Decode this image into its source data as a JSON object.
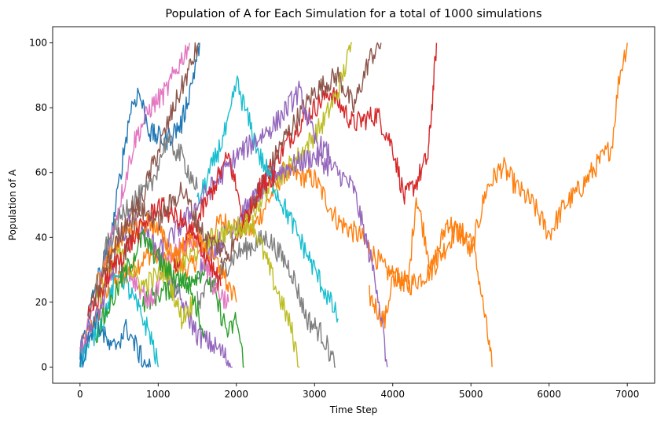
{
  "chart_data": {
    "type": "line",
    "title": "Population of A for Each Simulation for a total of 1000 simulations",
    "xlabel": "Time Step",
    "ylabel": "Population of A",
    "xlim": [
      -350,
      7350
    ],
    "ylim": [
      -5,
      105
    ],
    "xticks": [
      0,
      1000,
      2000,
      3000,
      4000,
      5000,
      6000,
      7000
    ],
    "yticks": [
      0,
      20,
      40,
      60,
      80,
      100
    ],
    "grid": false,
    "legend": "none",
    "palette": [
      "#1f77b4",
      "#ff7f0e",
      "#2ca02c",
      "#d62728",
      "#9467bd",
      "#8c564b",
      "#e377c2",
      "#7f7f7f",
      "#bcbd22",
      "#17becf"
    ],
    "series": [
      {
        "color": "#ff7f0e",
        "points": [
          [
            0,
            5
          ],
          [
            400,
            25
          ],
          [
            900,
            35
          ],
          [
            1400,
            30
          ],
          [
            1800,
            45
          ],
          [
            2200,
            42
          ],
          [
            2600,
            60
          ],
          [
            3000,
            58
          ],
          [
            3300,
            45
          ],
          [
            3600,
            40
          ],
          [
            3900,
            30
          ],
          [
            4200,
            25
          ],
          [
            4500,
            30
          ],
          [
            4800,
            42
          ],
          [
            5000,
            40
          ],
          [
            5100,
            28
          ],
          [
            5200,
            12
          ],
          [
            5270,
            0
          ]
        ]
      },
      {
        "color": "#ff7f0e",
        "points": [
          [
            3700,
            22
          ],
          [
            3900,
            14
          ],
          [
            4000,
            28
          ],
          [
            4200,
            26
          ],
          [
            4300,
            53
          ],
          [
            4500,
            30
          ],
          [
            4700,
            45
          ],
          [
            4900,
            40
          ],
          [
            5000,
            35
          ],
          [
            5200,
            55
          ],
          [
            5400,
            62
          ],
          [
            5600,
            55
          ],
          [
            5800,
            50
          ],
          [
            6000,
            41
          ],
          [
            6200,
            50
          ],
          [
            6400,
            55
          ],
          [
            6600,
            62
          ],
          [
            6800,
            68
          ],
          [
            6900,
            90
          ],
          [
            7000,
            100
          ]
        ]
      },
      {
        "color": "#d62728",
        "points": [
          [
            2000,
            40
          ],
          [
            2400,
            60
          ],
          [
            2800,
            75
          ],
          [
            3200,
            85
          ],
          [
            3500,
            75
          ],
          [
            3800,
            78
          ],
          [
            4000,
            68
          ],
          [
            4150,
            52
          ],
          [
            4300,
            57
          ],
          [
            4450,
            65
          ],
          [
            4500,
            80
          ],
          [
            4560,
            100
          ]
        ]
      },
      {
        "color": "#8c564b",
        "points": [
          [
            1800,
            30
          ],
          [
            2200,
            50
          ],
          [
            2600,
            70
          ],
          [
            3000,
            85
          ],
          [
            3300,
            90
          ],
          [
            3500,
            80
          ],
          [
            3700,
            95
          ],
          [
            3850,
            100
          ]
        ]
      },
      {
        "color": "#bcbd22",
        "points": [
          [
            2000,
            40
          ],
          [
            2400,
            55
          ],
          [
            2800,
            65
          ],
          [
            3100,
            75
          ],
          [
            3300,
            85
          ],
          [
            3480,
            100
          ]
        ]
      },
      {
        "color": "#9467bd",
        "points": [
          [
            1500,
            30
          ],
          [
            2000,
            45
          ],
          [
            2500,
            60
          ],
          [
            3000,
            65
          ],
          [
            3300,
            60
          ],
          [
            3500,
            55
          ],
          [
            3650,
            40
          ],
          [
            3800,
            25
          ],
          [
            3930,
            0
          ]
        ]
      },
      {
        "color": "#7f7f7f",
        "points": [
          [
            1500,
            20
          ],
          [
            2000,
            35
          ],
          [
            2400,
            40
          ],
          [
            2700,
            30
          ],
          [
            2900,
            15
          ],
          [
            3100,
            10
          ],
          [
            3270,
            0
          ]
        ]
      },
      {
        "color": "#bcbd22",
        "points": [
          [
            1200,
            30
          ],
          [
            1700,
            40
          ],
          [
            2200,
            45
          ],
          [
            2500,
            25
          ],
          [
            2700,
            12
          ],
          [
            2810,
            0
          ]
        ]
      },
      {
        "color": "#2ca02c",
        "points": [
          [
            800,
            20
          ],
          [
            1200,
            25
          ],
          [
            1600,
            30
          ],
          [
            1900,
            10
          ],
          [
            2000,
            15
          ],
          [
            2100,
            0
          ]
        ]
      },
      {
        "color": "#1f77b4",
        "points": [
          [
            0,
            5
          ],
          [
            200,
            25
          ],
          [
            400,
            40
          ],
          [
            550,
            65
          ],
          [
            650,
            80
          ],
          [
            750,
            85
          ],
          [
            900,
            72
          ],
          [
            1100,
            70
          ],
          [
            1300,
            75
          ],
          [
            1450,
            90
          ],
          [
            1530,
            100
          ]
        ]
      },
      {
        "color": "#e377c2",
        "points": [
          [
            0,
            3
          ],
          [
            300,
            30
          ],
          [
            500,
            50
          ],
          [
            700,
            70
          ],
          [
            900,
            80
          ],
          [
            1100,
            85
          ],
          [
            1300,
            95
          ],
          [
            1400,
            100
          ]
        ]
      },
      {
        "color": "#9467bd",
        "points": [
          [
            0,
            5
          ],
          [
            300,
            20
          ],
          [
            600,
            45
          ],
          [
            900,
            40
          ],
          [
            1200,
            25
          ],
          [
            1500,
            10
          ],
          [
            1800,
            5
          ],
          [
            1950,
            0
          ]
        ]
      },
      {
        "color": "#17becf",
        "points": [
          [
            0,
            2
          ],
          [
            300,
            15
          ],
          [
            500,
            30
          ],
          [
            700,
            20
          ],
          [
            900,
            10
          ],
          [
            1000,
            0
          ]
        ]
      },
      {
        "color": "#8c564b",
        "points": [
          [
            500,
            30
          ],
          [
            900,
            60
          ],
          [
            1200,
            80
          ],
          [
            1400,
            92
          ],
          [
            1520,
            100
          ]
        ]
      },
      {
        "color": "#17becf",
        "points": [
          [
            1500,
            50
          ],
          [
            1900,
            75
          ],
          [
            2000,
            88
          ],
          [
            2300,
            65
          ],
          [
            2600,
            50
          ],
          [
            2900,
            35
          ],
          [
            3100,
            25
          ],
          [
            3300,
            15
          ]
        ]
      },
      {
        "color": "#9467bd",
        "points": [
          [
            1000,
            35
          ],
          [
            1500,
            50
          ],
          [
            2000,
            65
          ],
          [
            2500,
            75
          ],
          [
            2800,
            85
          ],
          [
            3000,
            70
          ],
          [
            3200,
            65
          ]
        ]
      },
      {
        "color": "#d62728",
        "points": [
          [
            1200,
            30
          ],
          [
            1600,
            50
          ],
          [
            1900,
            65
          ],
          [
            2100,
            45
          ],
          [
            2300,
            55
          ],
          [
            2500,
            60
          ]
        ]
      },
      {
        "color": "#e377c2",
        "points": [
          [
            600,
            30
          ],
          [
            900,
            20
          ],
          [
            1200,
            35
          ],
          [
            1500,
            40
          ],
          [
            1700,
            25
          ],
          [
            1900,
            20
          ]
        ]
      },
      {
        "color": "#bcbd22",
        "points": [
          [
            200,
            20
          ],
          [
            500,
            35
          ],
          [
            800,
            25
          ],
          [
            1100,
            30
          ],
          [
            1300,
            15
          ],
          [
            1450,
            20
          ]
        ]
      },
      {
        "color": "#2ca02c",
        "points": [
          [
            200,
            10
          ],
          [
            500,
            25
          ],
          [
            800,
            40
          ],
          [
            1100,
            30
          ],
          [
            1400,
            25
          ],
          [
            1600,
            10
          ]
        ]
      },
      {
        "color": "#1f77b4",
        "points": [
          [
            0,
            0
          ],
          [
            200,
            15
          ],
          [
            400,
            5
          ],
          [
            600,
            12
          ],
          [
            800,
            2
          ],
          [
            900,
            0
          ]
        ]
      },
      {
        "color": "#ff7f0e",
        "points": [
          [
            200,
            25
          ],
          [
            500,
            40
          ],
          [
            900,
            45
          ],
          [
            1200,
            35
          ],
          [
            1500,
            40
          ],
          [
            1800,
            30
          ],
          [
            2000,
            20
          ]
        ]
      },
      {
        "color": "#7f7f7f",
        "points": [
          [
            300,
            35
          ],
          [
            600,
            50
          ],
          [
            900,
            55
          ],
          [
            1100,
            70
          ],
          [
            1300,
            65
          ],
          [
            1500,
            55
          ]
        ]
      },
      {
        "color": "#d62728",
        "points": [
          [
            100,
            15
          ],
          [
            400,
            30
          ],
          [
            700,
            40
          ],
          [
            1000,
            50
          ],
          [
            1300,
            45
          ],
          [
            1600,
            35
          ],
          [
            1800,
            25
          ]
        ]
      },
      {
        "color": "#8c564b",
        "points": [
          [
            100,
            15
          ],
          [
            400,
            35
          ],
          [
            700,
            50
          ],
          [
            1000,
            45
          ],
          [
            1300,
            55
          ],
          [
            1600,
            40
          ],
          [
            1900,
            35
          ]
        ]
      }
    ]
  }
}
